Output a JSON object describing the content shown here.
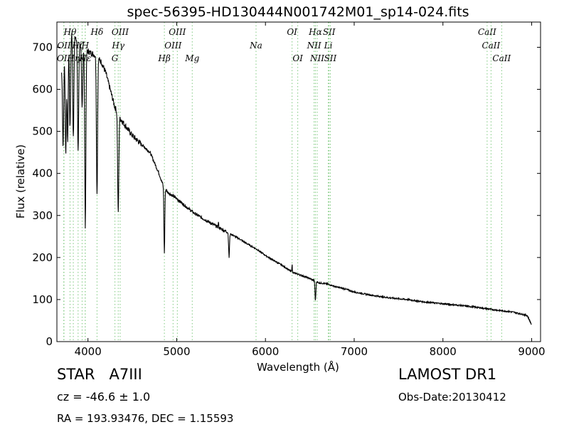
{
  "chart_data": {
    "type": "line",
    "title": "spec-56395-HD130444N001742M01_sp14-024.fits",
    "xlabel": "Wavelength (Å)",
    "ylabel": "Flux (relative)",
    "xlim": [
      3650,
      9100
    ],
    "ylim": [
      0,
      760
    ],
    "xticks": [
      4000,
      5000,
      6000,
      7000,
      8000,
      9000
    ],
    "yticks": [
      0,
      100,
      200,
      300,
      400,
      500,
      600,
      700
    ],
    "grid": false,
    "line_color": "#000000",
    "marker_color": "#7fc97f",
    "continuum": [
      [
        3700,
        640
      ],
      [
        3750,
        700
      ],
      [
        3800,
        740
      ],
      [
        3850,
        730
      ],
      [
        3900,
        710
      ],
      [
        3950,
        700
      ],
      [
        4000,
        690
      ],
      [
        4050,
        685
      ],
      [
        4100,
        678
      ],
      [
        4150,
        665
      ],
      [
        4200,
        640
      ],
      [
        4250,
        600
      ],
      [
        4300,
        560
      ],
      [
        4350,
        535
      ],
      [
        4400,
        520
      ],
      [
        4450,
        505
      ],
      [
        4500,
        490
      ],
      [
        4600,
        470
      ],
      [
        4700,
        450
      ],
      [
        4800,
        400
      ],
      [
        4850,
        370
      ],
      [
        4900,
        355
      ],
      [
        5000,
        340
      ],
      [
        5100,
        322
      ],
      [
        5200,
        305
      ],
      [
        5300,
        292
      ],
      [
        5400,
        280
      ],
      [
        5500,
        268
      ],
      [
        5600,
        257
      ],
      [
        5700,
        245
      ],
      [
        5800,
        232
      ],
      [
        5900,
        220
      ],
      [
        6000,
        205
      ],
      [
        6100,
        192
      ],
      [
        6200,
        180
      ],
      [
        6300,
        165
      ],
      [
        6400,
        158
      ],
      [
        6500,
        150
      ],
      [
        6600,
        140
      ],
      [
        6700,
        137
      ],
      [
        6800,
        130
      ],
      [
        6900,
        125
      ],
      [
        7000,
        118
      ],
      [
        7200,
        110
      ],
      [
        7400,
        104
      ],
      [
        7600,
        100
      ],
      [
        7800,
        94
      ],
      [
        8000,
        90
      ],
      [
        8200,
        86
      ],
      [
        8400,
        81
      ],
      [
        8600,
        75
      ],
      [
        8800,
        70
      ],
      [
        8950,
        62
      ],
      [
        9000,
        40
      ]
    ],
    "absorption_features": [
      {
        "wavelength": 3720,
        "depth": 200
      },
      {
        "wavelength": 3750,
        "depth": 250
      },
      {
        "wavelength": 3771,
        "depth": 240
      },
      {
        "wavelength": 3798,
        "depth": 230
      },
      {
        "wavelength": 3835,
        "depth": 250
      },
      {
        "wavelength": 3889,
        "depth": 260
      },
      {
        "wavelength": 3934,
        "depth": 150
      },
      {
        "wavelength": 3970,
        "depth": 420
      },
      {
        "wavelength": 4102,
        "depth": 325
      },
      {
        "wavelength": 4341,
        "depth": 235
      },
      {
        "wavelength": 4861,
        "depth": 155
      },
      {
        "wavelength": 5590,
        "depth": 58
      },
      {
        "wavelength": 6563,
        "depth": 46
      }
    ],
    "emission_features": [
      {
        "wavelength": 5470,
        "height": 12
      },
      {
        "wavelength": 6300,
        "height": 18
      }
    ],
    "line_markers": [
      {
        "label": "OII",
        "wavelength": 3727,
        "row": 3
      },
      {
        "label": "OII",
        "wavelength": 3730,
        "row": 2
      },
      {
        "label": "Hθ",
        "wavelength": 3798,
        "row": 1
      },
      {
        "label": "Hη",
        "wavelength": 3835,
        "row": 3
      },
      {
        "label": "Hζ",
        "wavelength": 3889,
        "row": 2
      },
      {
        "label": "Hε",
        "wavelength": 3970,
        "row": 3
      },
      {
        "label": "K",
        "wavelength": 3934,
        "row": 3
      },
      {
        "label": "H",
        "wavelength": 3969,
        "row": 2
      },
      {
        "label": "Hδ",
        "wavelength": 4102,
        "row": 1
      },
      {
        "label": "OIII",
        "wavelength": 4363,
        "row": 1
      },
      {
        "label": "Hγ",
        "wavelength": 4341,
        "row": 2
      },
      {
        "label": "G",
        "wavelength": 4304,
        "row": 3
      },
      {
        "label": "OIII",
        "wavelength": 5007,
        "row": 1
      },
      {
        "label": "OIII",
        "wavelength": 4959,
        "row": 2
      },
      {
        "label": "Hβ",
        "wavelength": 4861,
        "row": 3
      },
      {
        "label": "Mg",
        "wavelength": 5175,
        "row": 3
      },
      {
        "label": "Na",
        "wavelength": 5894,
        "row": 2
      },
      {
        "label": "OI",
        "wavelength": 6300,
        "row": 1
      },
      {
        "label": "OI",
        "wavelength": 6364,
        "row": 3
      },
      {
        "label": "Hα",
        "wavelength": 6563,
        "row": 1
      },
      {
        "label": "NII",
        "wavelength": 6548,
        "row": 2
      },
      {
        "label": "NII",
        "wavelength": 6583,
        "row": 3
      },
      {
        "label": "SII",
        "wavelength": 6717,
        "row": 1
      },
      {
        "label": "Li",
        "wavelength": 6708,
        "row": 2
      },
      {
        "label": "SII",
        "wavelength": 6731,
        "row": 3
      },
      {
        "label": "CaII",
        "wavelength": 8498,
        "row": 1
      },
      {
        "label": "CaII",
        "wavelength": 8542,
        "row": 2
      },
      {
        "label": "CaII",
        "wavelength": 8662,
        "row": 3
      }
    ]
  },
  "info": {
    "object_class": "STAR",
    "subclass": "A7III",
    "survey": "LAMOST DR1",
    "redshift": "cz = -46.6 ± 1.0",
    "obs_date": "Obs-Date:20130412",
    "coords": "RA = 193.93476, DEC = 1.15593"
  }
}
